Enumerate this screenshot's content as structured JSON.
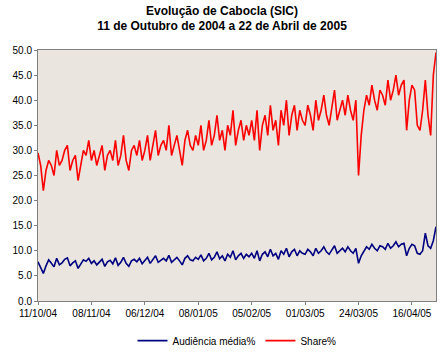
{
  "chart_data": {
    "type": "line",
    "title": "Evolução de Cabocla (SIC)",
    "subtitle": "11 de Outubro de 2004 a 22 de Abril de 2005",
    "categories": [
      "11/10/04",
      null,
      null,
      null,
      null,
      null,
      null,
      null,
      null,
      null,
      null,
      null,
      null,
      null,
      null,
      null,
      null,
      null,
      null,
      null,
      "08/11/04",
      null,
      null,
      null,
      null,
      null,
      null,
      null,
      null,
      null,
      null,
      null,
      null,
      null,
      null,
      null,
      null,
      null,
      null,
      null,
      "06/12/04",
      null,
      null,
      null,
      null,
      null,
      null,
      null,
      null,
      null,
      null,
      null,
      null,
      null,
      null,
      null,
      null,
      null,
      null,
      null,
      "08/01/05",
      null,
      null,
      null,
      null,
      null,
      null,
      null,
      null,
      null,
      null,
      null,
      null,
      null,
      null,
      null,
      null,
      null,
      null,
      null,
      "05/02/05",
      null,
      null,
      null,
      null,
      null,
      null,
      null,
      null,
      null,
      null,
      null,
      null,
      null,
      null,
      null,
      null,
      null,
      null,
      null,
      "01/03/05",
      null,
      null,
      null,
      null,
      null,
      null,
      null,
      null,
      null,
      null,
      null,
      null,
      null,
      null,
      null,
      null,
      null,
      null,
      null,
      "24/03/05",
      null,
      null,
      null,
      null,
      null,
      null,
      null,
      null,
      null,
      null,
      null,
      null,
      null,
      null,
      null,
      null,
      null,
      null,
      null,
      "16/04/05",
      null,
      null,
      null,
      null,
      null,
      null,
      null,
      null,
      null
    ],
    "series": [
      {
        "name": "Audiência média%",
        "color": "#000080",
        "values": [
          7.8,
          6.8,
          5.5,
          7,
          8.2,
          7.5,
          6.8,
          8.5,
          7.2,
          7.6,
          8.3,
          8.6,
          7,
          7.6,
          8,
          6.5,
          7.3,
          8.2,
          7.9,
          8.5,
          7.5,
          8,
          7.2,
          7.8,
          8.3,
          6.9,
          7.8,
          8.1,
          7.4,
          8.6,
          7.1,
          7.7,
          8.7,
          7.5,
          6.9,
          8,
          8.3,
          7.8,
          8.5,
          7.4,
          8,
          8.7,
          7.5,
          8.2,
          9,
          7.7,
          8.2,
          8.5,
          8,
          9.1,
          7.7,
          8.2,
          8.7,
          8,
          7.2,
          8.5,
          9,
          8.2,
          8,
          8.7,
          8.3,
          9.2,
          8,
          8.5,
          9.5,
          8.2,
          8.7,
          9.8,
          8.4,
          9,
          8,
          9.3,
          8.7,
          10,
          8.2,
          9,
          9.5,
          8.5,
          9.3,
          8.8,
          9.5,
          8.5,
          10,
          8,
          9.3,
          9.8,
          8.8,
          10.3,
          9,
          9.5,
          8.3,
          10,
          9.3,
          10.5,
          8.8,
          9.8,
          10.3,
          9,
          10,
          9.5,
          9.3,
          10.3,
          9.8,
          9,
          10.5,
          9.5,
          10,
          10.8,
          9.8,
          9.3,
          10.3,
          11,
          9.5,
          10,
          10.5,
          9.8,
          10.8,
          10,
          9.5,
          10.5,
          7.5,
          9,
          10,
          10.8,
          10.3,
          11.3,
          10.5,
          10,
          11,
          10.8,
          10.3,
          11.5,
          10.5,
          11,
          11.8,
          10.8,
          11.3,
          11.5,
          9,
          10.5,
          11.3,
          11,
          9.5,
          9.3,
          10,
          13.5,
          11,
          10.5,
          12,
          14.8
        ]
      },
      {
        "name": "Share%",
        "color": "#ff0000",
        "values": [
          29.5,
          27,
          22,
          26,
          28,
          27,
          25,
          30,
          27,
          28,
          30,
          31,
          26,
          28,
          29,
          24,
          27,
          30,
          29,
          32,
          28,
          30,
          27,
          29,
          31,
          26,
          29,
          30,
          28,
          32,
          27,
          29,
          33,
          28,
          26,
          30,
          31,
          29,
          32,
          28,
          30,
          33,
          28,
          31,
          34,
          29,
          31,
          32,
          30,
          35,
          29,
          31,
          33,
          30,
          27,
          32,
          34,
          31,
          30,
          33,
          31,
          35,
          30,
          32,
          36,
          31,
          33,
          37,
          32,
          34,
          30,
          35,
          33,
          38,
          31,
          34,
          36,
          32,
          35,
          33,
          36,
          32,
          38,
          30,
          35,
          37,
          33,
          39,
          34,
          36,
          31,
          38,
          35,
          40,
          33,
          37,
          39,
          34,
          38,
          36,
          35,
          39,
          37,
          34,
          40,
          36,
          38,
          41,
          37,
          35,
          39,
          42,
          36,
          38,
          40,
          37,
          41,
          38,
          36,
          40,
          25,
          33,
          38,
          41,
          39,
          43,
          40,
          38,
          42,
          41,
          39,
          44,
          40,
          42,
          45,
          41,
          43,
          44,
          34,
          40,
          43,
          42,
          35,
          34,
          38,
          44,
          37,
          33,
          45,
          49.5
        ]
      }
    ],
    "ylim": [
      0,
      50
    ],
    "yticks": [
      {
        "value": 0,
        "label": "0.0"
      },
      {
        "value": 5,
        "label": "5.0"
      },
      {
        "value": 10,
        "label": "10.0"
      },
      {
        "value": 15,
        "label": "15.0"
      },
      {
        "value": 20,
        "label": "20.0"
      },
      {
        "value": 25,
        "label": "25.0"
      },
      {
        "value": 30,
        "label": "30.0"
      },
      {
        "value": 35,
        "label": "35.0"
      },
      {
        "value": 40,
        "label": "40.0"
      },
      {
        "value": 45,
        "label": "45.0"
      },
      {
        "value": 50,
        "label": "50.0"
      }
    ],
    "grid": false,
    "legend": "bottom"
  }
}
